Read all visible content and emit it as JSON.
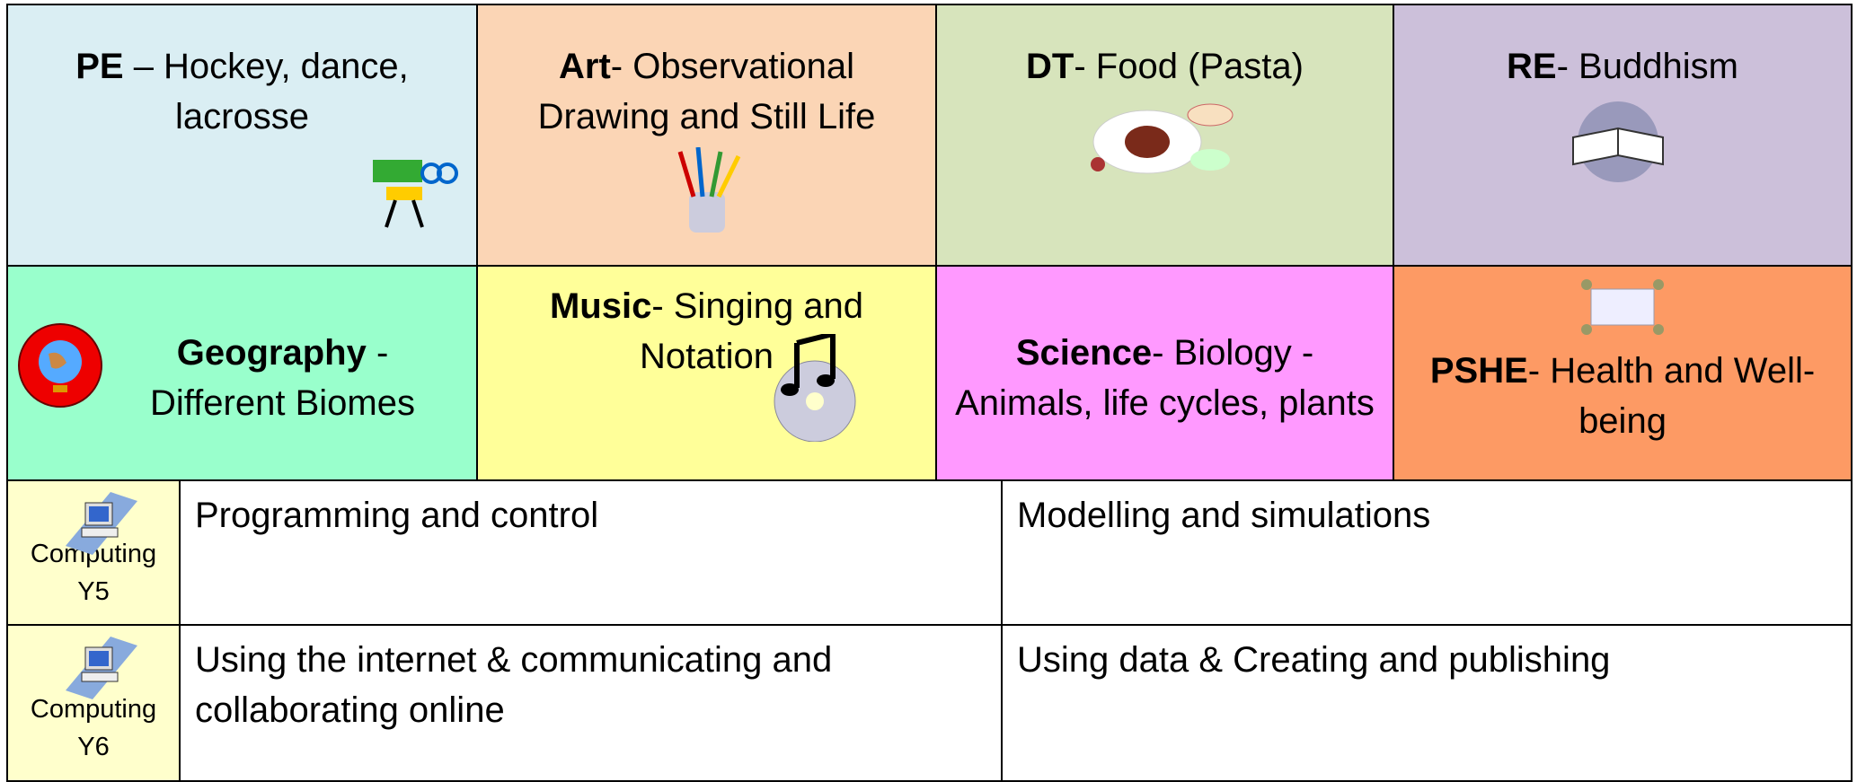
{
  "subjects": [
    {
      "name": "PE",
      "topic": "– Hockey, dance, lacrosse"
    },
    {
      "name": "Art",
      "topic": "- Observational Drawing and Still Life"
    },
    {
      "name": "DT",
      "topic": "- Food (Pasta)"
    },
    {
      "name": "RE",
      "topic": "- Buddhism"
    },
    {
      "name": "Geography",
      "topic": " - Different Biomes"
    },
    {
      "name": "Music",
      "topic": "- Singing and Notation"
    },
    {
      "name": "Science",
      "topic": "- Biology - Animals, life cycles, plants"
    },
    {
      "name": "PSHE",
      "topic": "- Health and Well-being"
    }
  ],
  "computing": {
    "rows": [
      {
        "label": "Computing",
        "year": "Y5",
        "cells": [
          "Programming and control",
          "Modelling and simulations"
        ]
      },
      {
        "label": "Computing",
        "year": "Y6",
        "cells": [
          "Using the internet & communicating and collaborating online",
          "Using data & Creating and publishing"
        ]
      }
    ]
  }
}
